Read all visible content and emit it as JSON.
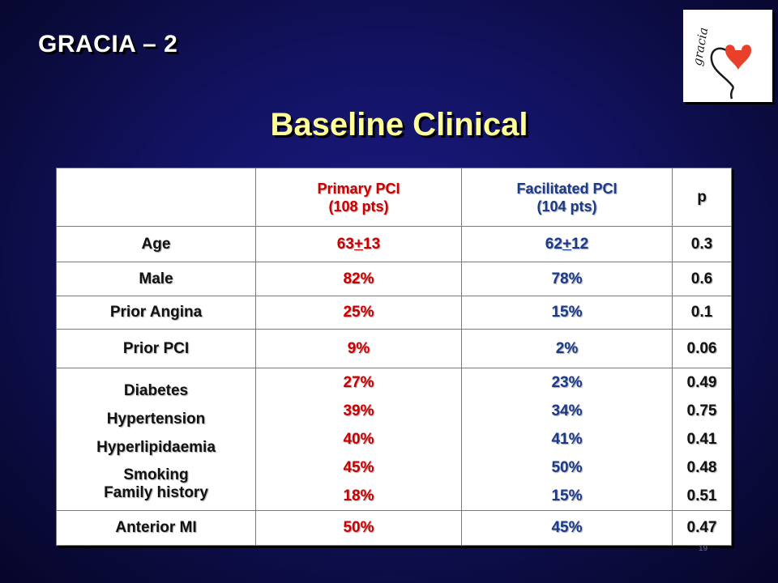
{
  "slide": {
    "title": "GRACIA – 2",
    "heading": "Baseline Clinical",
    "page_number": "19"
  },
  "logo": {
    "text": "gracia",
    "icon": "heart-stethoscope-logo",
    "colors": {
      "heart": "#e8402a",
      "line": "#1a1a1a"
    }
  },
  "table": {
    "header": {
      "col1": "",
      "col2_line1": "Primary PCI",
      "col2_line2": "(108 pts)",
      "col3_line1": "Facilitated PCI",
      "col3_line2": "(104 pts)",
      "col4": "p"
    },
    "rows": [
      {
        "label": "Age",
        "primary_mean": "63",
        "primary_pm": "+",
        "primary_sd": "13",
        "facilitated_mean": "62",
        "facilitated_pm": "+",
        "facilitated_sd": "12",
        "p": "0.3"
      },
      {
        "label": "Male",
        "primary": "82%",
        "facilitated": "78%",
        "p": "0.6"
      },
      {
        "label": "Prior Angina",
        "primary": "25%",
        "facilitated": "15%",
        "p": "0.1"
      },
      {
        "label": "Prior PCI",
        "primary": "9%",
        "facilitated": "2%",
        "p": "0.06"
      }
    ],
    "risk_factors": {
      "labels": [
        "Diabetes",
        "Hypertension",
        "Hyperlipidaemia",
        "Smoking",
        "Family history"
      ],
      "primary": [
        "27%",
        "39%",
        "40%",
        "45%",
        "18%"
      ],
      "facilitated": [
        "23%",
        "34%",
        "41%",
        "50%",
        "15%"
      ],
      "p": [
        "0.49",
        "0.75",
        "0.41",
        "0.48",
        "0.51"
      ]
    },
    "last_row": {
      "label": "Anterior MI",
      "primary": "50%",
      "facilitated": "45%",
      "p": "0.47"
    }
  },
  "colors": {
    "background": "#121262",
    "title": "#ffffff",
    "heading": "#ffff99",
    "primary_text": "#cc0000",
    "facilitated_text": "#1a3a8a"
  }
}
